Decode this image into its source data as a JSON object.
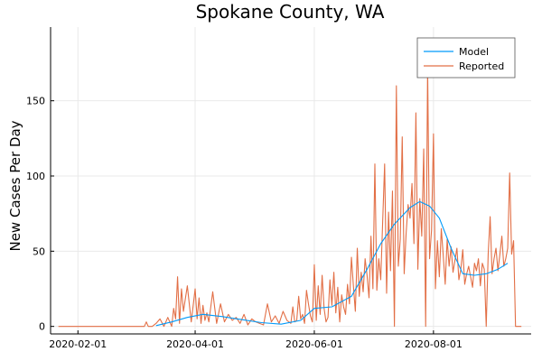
{
  "chart_data": {
    "type": "line",
    "title": "Spokane County, WA",
    "xlabel": "",
    "ylabel": "New Cases Per Day",
    "x_ticks": [
      {
        "date": "2020-02-01",
        "label": "2020-02-01"
      },
      {
        "date": "2020-04-01",
        "label": "2020-04-01"
      },
      {
        "date": "2020-06-01",
        "label": "2020-06-01"
      },
      {
        "date": "2020-08-01",
        "label": "2020-08-01"
      }
    ],
    "y_ticks": [
      0,
      50,
      100,
      150
    ],
    "xlim": [
      "2020-01-18",
      "2020-09-20"
    ],
    "ylim": [
      -5,
      199
    ],
    "grid": true,
    "legend_position": "top-right",
    "series": [
      {
        "name": "Model",
        "color": "#009af9",
        "x": [
          "2020-03-12",
          "2020-03-20",
          "2020-03-28",
          "2020-04-05",
          "2020-04-15",
          "2020-04-25",
          "2020-05-05",
          "2020-05-15",
          "2020-05-25",
          "2020-06-01",
          "2020-06-10",
          "2020-06-20",
          "2020-06-28",
          "2020-07-05",
          "2020-07-12",
          "2020-07-20",
          "2020-07-25",
          "2020-07-30",
          "2020-08-04",
          "2020-08-10",
          "2020-08-16",
          "2020-08-22",
          "2020-08-28",
          "2020-09-03",
          "2020-09-08"
        ],
        "y": [
          0.5,
          3,
          6,
          8,
          6.5,
          4.5,
          2.5,
          1.5,
          4,
          12,
          13,
          20,
          38,
          55,
          68,
          79,
          83,
          80,
          72,
          52,
          35,
          34,
          35,
          38,
          42
        ]
      },
      {
        "name": "Reported",
        "color": "#e26f46",
        "x": [
          "2020-01-22",
          "2020-03-06",
          "2020-03-07",
          "2020-03-08",
          "2020-03-10",
          "2020-03-12",
          "2020-03-14",
          "2020-03-16",
          "2020-03-18",
          "2020-03-19",
          "2020-03-20",
          "2020-03-21",
          "2020-03-22",
          "2020-03-23",
          "2020-03-24",
          "2020-03-25",
          "2020-03-26",
          "2020-03-28",
          "2020-03-30",
          "2020-04-01",
          "2020-04-02",
          "2020-04-03",
          "2020-04-04",
          "2020-04-05",
          "2020-04-06",
          "2020-04-07",
          "2020-04-08",
          "2020-04-10",
          "2020-04-12",
          "2020-04-14",
          "2020-04-16",
          "2020-04-18",
          "2020-04-20",
          "2020-04-22",
          "2020-04-24",
          "2020-04-26",
          "2020-04-28",
          "2020-04-30",
          "2020-05-02",
          "2020-05-04",
          "2020-05-06",
          "2020-05-08",
          "2020-05-10",
          "2020-05-12",
          "2020-05-14",
          "2020-05-16",
          "2020-05-18",
          "2020-05-20",
          "2020-05-21",
          "2020-05-22",
          "2020-05-23",
          "2020-05-24",
          "2020-05-25",
          "2020-05-26",
          "2020-05-27",
          "2020-05-28",
          "2020-05-29",
          "2020-05-30",
          "2020-05-31",
          "2020-06-01",
          "2020-06-02",
          "2020-06-03",
          "2020-06-04",
          "2020-06-05",
          "2020-06-06",
          "2020-06-07",
          "2020-06-08",
          "2020-06-09",
          "2020-06-10",
          "2020-06-11",
          "2020-06-12",
          "2020-06-13",
          "2020-06-14",
          "2020-06-15",
          "2020-06-16",
          "2020-06-17",
          "2020-06-18",
          "2020-06-19",
          "2020-06-20",
          "2020-06-21",
          "2020-06-22",
          "2020-06-23",
          "2020-06-24",
          "2020-06-25",
          "2020-06-26",
          "2020-06-27",
          "2020-06-28",
          "2020-06-29",
          "2020-06-30",
          "2020-07-01",
          "2020-07-02",
          "2020-07-03",
          "2020-07-04",
          "2020-07-05",
          "2020-07-06",
          "2020-07-07",
          "2020-07-08",
          "2020-07-09",
          "2020-07-10",
          "2020-07-11",
          "2020-07-12",
          "2020-07-13",
          "2020-07-14",
          "2020-07-15",
          "2020-07-16",
          "2020-07-17",
          "2020-07-18",
          "2020-07-19",
          "2020-07-20",
          "2020-07-21",
          "2020-07-22",
          "2020-07-23",
          "2020-07-24",
          "2020-07-25",
          "2020-07-26",
          "2020-07-27",
          "2020-07-28",
          "2020-07-29",
          "2020-07-30",
          "2020-07-31",
          "2020-08-01",
          "2020-08-02",
          "2020-08-03",
          "2020-08-04",
          "2020-08-05",
          "2020-08-06",
          "2020-08-07",
          "2020-08-08",
          "2020-08-09",
          "2020-08-10",
          "2020-08-11",
          "2020-08-12",
          "2020-08-13",
          "2020-08-14",
          "2020-08-15",
          "2020-08-16",
          "2020-08-17",
          "2020-08-18",
          "2020-08-19",
          "2020-08-20",
          "2020-08-21",
          "2020-08-22",
          "2020-08-23",
          "2020-08-24",
          "2020-08-25",
          "2020-08-26",
          "2020-08-27",
          "2020-08-28",
          "2020-08-29",
          "2020-08-30",
          "2020-08-31",
          "2020-09-01",
          "2020-09-02",
          "2020-09-03",
          "2020-09-04",
          "2020-09-05",
          "2020-09-06",
          "2020-09-07",
          "2020-09-08",
          "2020-09-09",
          "2020-09-10",
          "2020-09-11",
          "2020-09-12",
          "2020-09-13",
          "2020-09-14",
          "2020-09-15"
        ],
        "y": [
          0,
          0,
          3,
          0,
          0,
          2,
          5,
          0,
          6,
          3,
          0,
          12,
          5,
          33,
          2,
          25,
          10,
          27,
          3,
          25,
          5,
          19,
          2,
          14,
          4,
          9,
          3,
          23,
          2,
          15,
          3,
          8,
          4,
          6,
          2,
          8,
          1,
          5,
          3,
          2,
          1,
          15,
          3,
          7,
          2,
          10,
          4,
          2,
          13,
          3,
          4,
          20,
          5,
          8,
          2,
          24,
          15,
          7,
          3,
          41,
          4,
          27,
          8,
          34,
          12,
          3,
          6,
          31,
          14,
          36,
          9,
          26,
          3,
          21,
          13,
          8,
          28,
          15,
          46,
          27,
          10,
          52,
          20,
          36,
          23,
          45,
          34,
          19,
          60,
          25,
          108,
          24,
          45,
          31,
          70,
          108,
          22,
          76,
          37,
          90,
          0,
          160,
          40,
          58,
          126,
          35,
          62,
          81,
          72,
          95,
          55,
          142,
          38,
          85,
          60,
          118,
          0,
          172,
          45,
          64,
          128,
          25,
          57,
          33,
          65,
          47,
          28,
          58,
          40,
          53,
          36,
          44,
          52,
          31,
          38,
          51,
          28,
          35,
          40,
          33,
          26,
          42,
          37,
          45,
          27,
          42,
          38,
          0,
          48,
          73,
          35,
          45,
          52,
          37,
          48,
          60,
          40,
          45,
          52,
          102,
          48,
          57,
          0,
          0,
          0,
          0
        ]
      }
    ]
  }
}
